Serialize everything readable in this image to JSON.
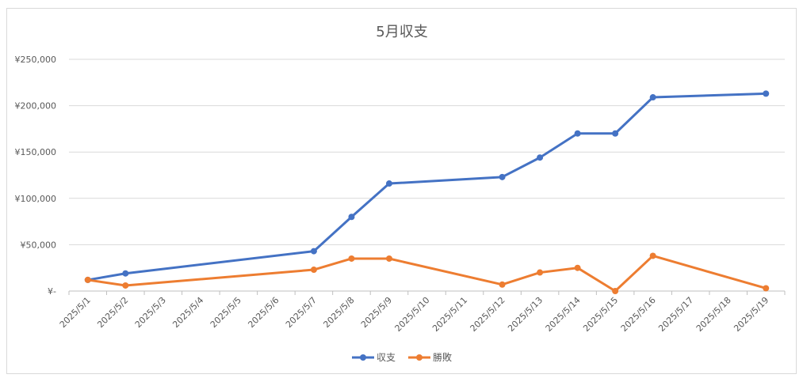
{
  "chart_data": {
    "type": "line",
    "title": "5月収支",
    "xlabel": "",
    "ylabel": "",
    "categories": [
      "2025/5/1",
      "2025/5/2",
      "2025/5/3",
      "2025/5/4",
      "2025/5/5",
      "2025/5/6",
      "2025/5/7",
      "2025/5/8",
      "2025/5/9",
      "2025/5/10",
      "2025/5/11",
      "2025/5/12",
      "2025/5/13",
      "2025/5/14",
      "2025/5/15",
      "2025/5/16",
      "2025/5/17",
      "2025/5/18",
      "2025/5/19"
    ],
    "y_tick_labels": [
      "¥-",
      "¥50,000",
      "¥100,000",
      "¥150,000",
      "¥200,000",
      "¥250,000"
    ],
    "y_ticks": [
      0,
      50000,
      100000,
      150000,
      200000,
      250000
    ],
    "ylim": [
      0,
      250000
    ],
    "grid": true,
    "legend_position": "bottom",
    "series": [
      {
        "name": "収支",
        "color": "#4472C4",
        "points": [
          {
            "x": "2025/5/1",
            "y": 12000
          },
          {
            "x": "2025/5/2",
            "y": 19000
          },
          {
            "x": "2025/5/7",
            "y": 43000
          },
          {
            "x": "2025/5/8",
            "y": 80000
          },
          {
            "x": "2025/5/9",
            "y": 116000
          },
          {
            "x": "2025/5/12",
            "y": 123000
          },
          {
            "x": "2025/5/13",
            "y": 144000
          },
          {
            "x": "2025/5/14",
            "y": 170000
          },
          {
            "x": "2025/5/15",
            "y": 170000
          },
          {
            "x": "2025/5/16",
            "y": 209000
          },
          {
            "x": "2025/5/19",
            "y": 213000
          }
        ]
      },
      {
        "name": "勝敗",
        "color": "#ED7D31",
        "points": [
          {
            "x": "2025/5/1",
            "y": 12000
          },
          {
            "x": "2025/5/2",
            "y": 6000
          },
          {
            "x": "2025/5/7",
            "y": 23000
          },
          {
            "x": "2025/5/8",
            "y": 35000
          },
          {
            "x": "2025/5/9",
            "y": 35000
          },
          {
            "x": "2025/5/12",
            "y": 7000
          },
          {
            "x": "2025/5/13",
            "y": 20000
          },
          {
            "x": "2025/5/14",
            "y": 25000
          },
          {
            "x": "2025/5/15",
            "y": 0
          },
          {
            "x": "2025/5/16",
            "y": 38000
          },
          {
            "x": "2025/5/19",
            "y": 3000
          }
        ]
      }
    ]
  }
}
